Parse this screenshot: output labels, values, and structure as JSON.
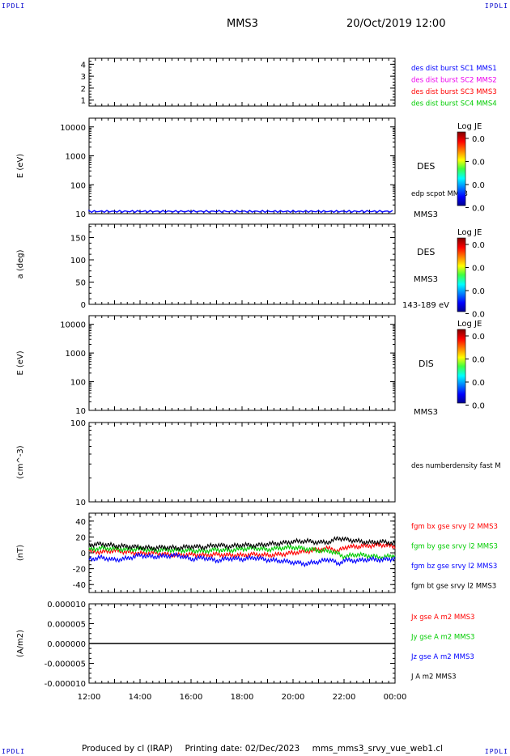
{
  "corner_labels": {
    "top_left": "IPDLI",
    "top_right": "IPDLI",
    "bottom_left": "IPDLI",
    "bottom_right": "IPDLI"
  },
  "header": {
    "spacecraft": "MMS3",
    "datetime": "20/Oct/2019 12:00"
  },
  "footer": {
    "produced_by": "Produced by cl (IRAP)",
    "printing_date": "Printing date: 02/Dec/2023",
    "filename": "mms_mms3_srvy_vue_web1.cl"
  },
  "time_axis": {
    "ticks": [
      "12:00",
      "14:00",
      "16:00",
      "18:00",
      "20:00",
      "22:00",
      "00:00"
    ]
  },
  "colors": {
    "red": "#ff0000",
    "green": "#00cc00",
    "blue": "#0000ff",
    "magenta": "#ee00ee",
    "black": "#000000"
  },
  "chart_data": [
    {
      "type": "line",
      "panel": "burst-availability",
      "ylim": [
        0.5,
        4.5
      ],
      "yticks": [
        "1",
        "2",
        "3",
        "4"
      ],
      "ylabel": "",
      "legend": [
        {
          "text": "des dist burst SC1 MMS1",
          "color": "#0000ff"
        },
        {
          "text": "des dist burst SC2 MMS2",
          "color": "#ee00ee"
        },
        {
          "text": "des dist burst SC3 MMS3",
          "color": "#ff0000"
        },
        {
          "text": "des dist burst SC4 MMS4",
          "color": "#00cc00"
        }
      ],
      "series": []
    },
    {
      "type": "heatmap",
      "panel": "des-energy",
      "yscale": "log",
      "ylim": [
        10,
        20000
      ],
      "yticks": [
        "10000",
        "1000",
        "100",
        "10"
      ],
      "ylabel": "E (eV)",
      "right_labels": [
        "DES",
        "edp scpot MMS3",
        "MMS3"
      ],
      "colorbar": {
        "title": "Log JE",
        "ticks": [
          "0.0",
          "0.0",
          "0.0",
          "0.0"
        ]
      },
      "line": {
        "name": "edp scpot MMS3",
        "approx_value_eV": 12
      }
    },
    {
      "type": "heatmap",
      "panel": "des-pitch-angle",
      "ylim": [
        0,
        180
      ],
      "yticks": [
        "150",
        "100",
        "50",
        "0"
      ],
      "ylabel": "a (deg)",
      "right_labels": [
        "DES",
        "MMS3",
        "143-189 eV"
      ],
      "colorbar": {
        "title": "Log JE",
        "ticks": [
          "0.0",
          "0.0",
          "0.0",
          "0.0"
        ]
      }
    },
    {
      "type": "heatmap",
      "panel": "dis-energy",
      "yscale": "log",
      "ylim": [
        10,
        20000
      ],
      "yticks": [
        "10000",
        "1000",
        "100",
        "10"
      ],
      "ylabel": "E (eV)",
      "right_labels": [
        "DIS",
        "MMS3"
      ],
      "colorbar": {
        "title": "Log JE",
        "ticks": [
          "0.0",
          "0.0",
          "0.0",
          "0.0"
        ]
      }
    },
    {
      "type": "line",
      "panel": "density",
      "yscale": "log",
      "ylim": [
        10,
        100
      ],
      "yticks": [
        "100",
        "10"
      ],
      "ylabel": "(cm^-3)",
      "legend": [
        {
          "text": "des numberdensity fast M",
          "color": "#000000"
        }
      ],
      "series": []
    },
    {
      "type": "line",
      "panel": "magnetic-field",
      "ylim": [
        -50,
        50
      ],
      "yticks": [
        "40",
        "20",
        "0",
        "-20",
        "-40"
      ],
      "ylabel": "(nT)",
      "legend": [
        {
          "text": "fgm bx gse srvy l2 MMS3",
          "color": "#ff0000"
        },
        {
          "text": "fgm by gse srvy l2 MMS3",
          "color": "#00cc00"
        },
        {
          "text": "fgm bz gse srvy l2 MMS3",
          "color": "#0000ff"
        },
        {
          "text": "fgm bt gse srvy l2 MMS3",
          "color": "#000000"
        }
      ],
      "x": [
        12.0,
        12.5,
        13.0,
        13.5,
        14.0,
        14.5,
        15.0,
        15.5,
        16.0,
        16.5,
        17.0,
        17.5,
        18.0,
        18.5,
        19.0,
        19.5,
        20.0,
        20.5,
        21.0,
        21.5,
        21.75,
        22.0,
        22.5,
        23.0,
        23.5,
        24.0
      ],
      "series": [
        {
          "name": "fgm bx gse srvy l2 MMS3",
          "color": "#ff0000",
          "values": [
            2,
            1,
            3,
            1,
            -1,
            0,
            -2,
            -3,
            -2,
            -3,
            -2,
            -3,
            -3,
            -2,
            -3,
            -2,
            0,
            2,
            4,
            6,
            1,
            7,
            8,
            9,
            10,
            8
          ]
        },
        {
          "name": "fgm by gse srvy l2 MMS3",
          "color": "#00cc00",
          "values": [
            4,
            6,
            5,
            4,
            5,
            3,
            4,
            3,
            3,
            2,
            4,
            3,
            5,
            6,
            4,
            6,
            7,
            5,
            3,
            2,
            -1,
            -5,
            -2,
            -4,
            -6,
            -3
          ]
        },
        {
          "name": "fgm bz gse srvy l2 MMS3",
          "color": "#0000ff",
          "values": [
            -8,
            -6,
            -9,
            -7,
            -3,
            -5,
            -4,
            -3,
            -8,
            -6,
            -10,
            -7,
            -8,
            -6,
            -9,
            -10,
            -12,
            -14,
            -11,
            -8,
            -15,
            -9,
            -10,
            -8,
            -9,
            -7
          ]
        },
        {
          "name": "fgm bt gse srvy l2 MMS3",
          "color": "#000000",
          "values": [
            10,
            11,
            9,
            8,
            7,
            6,
            7,
            6,
            8,
            7,
            10,
            8,
            10,
            9,
            11,
            12,
            14,
            15,
            13,
            14,
            19,
            17,
            15,
            13,
            14,
            12
          ]
        }
      ]
    },
    {
      "type": "line",
      "panel": "current-density",
      "ylim": [
        -1e-05,
        1e-05
      ],
      "yticks": [
        "0.000010",
        "0.000005",
        "0.000000",
        "-0.000005",
        "-0.000010"
      ],
      "ylabel": "(A/m2)",
      "legend": [
        {
          "text": "Jx gse A m2 MMS3",
          "color": "#ff0000"
        },
        {
          "text": "Jy gse A m2 MMS3",
          "color": "#00cc00"
        },
        {
          "text": "Jz gse A m2 MMS3",
          "color": "#0000ff"
        },
        {
          "text": "J A m2 MMS3",
          "color": "#000000"
        }
      ],
      "x": [
        12,
        24
      ],
      "series": [
        {
          "name": "J A m2 MMS3",
          "color": "#000000",
          "values": [
            0,
            0
          ]
        }
      ]
    }
  ]
}
